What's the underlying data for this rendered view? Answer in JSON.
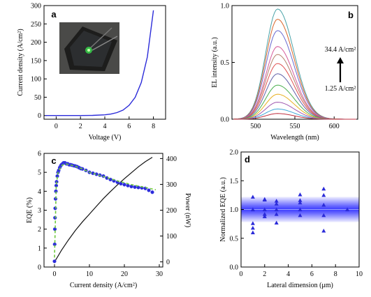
{
  "colors": {
    "axis": "#000000",
    "blue": "#2b2bd9",
    "green": "#6ec93c",
    "band": "#3a3aff",
    "black_line": "#111111"
  },
  "chart_data": [
    {
      "panel": "a",
      "type": "line",
      "xlabel": "Voltage (V)",
      "ylabel": "Current density (A/cm²)",
      "xlim": [
        -1,
        9
      ],
      "ylim": [
        -10,
        300
      ],
      "xticks": [
        0,
        2,
        4,
        6,
        8
      ],
      "yticks": [
        0,
        50,
        100,
        150,
        200,
        250,
        300
      ],
      "series": [
        {
          "x": [
            -0.9,
            0,
            1,
            2,
            3,
            4,
            4.5,
            5,
            5.5,
            6,
            6.5,
            7,
            7.5,
            8
          ],
          "y": [
            0,
            0,
            0,
            0,
            0.5,
            2,
            4,
            8,
            15,
            28,
            50,
            90,
            160,
            287
          ]
        }
      ],
      "inset": "device photo"
    },
    {
      "panel": "b",
      "type": "line",
      "xlabel": "Wavelength (nm)",
      "ylabel": "EL intensity (a.u.)",
      "xlim": [
        470,
        630
      ],
      "ylim": [
        0,
        1.0
      ],
      "xticks": [
        500,
        550,
        600
      ],
      "yticks": [
        0.0,
        0.5,
        1.0
      ],
      "peak_nm": 528,
      "annotation_top": "34.4 A/cm²",
      "annotation_bottom": "1.25 A/cm²",
      "series": [
        {
          "peak": 0.97,
          "color": "#4aa3a8"
        },
        {
          "peak": 0.88,
          "color": "#d9662a"
        },
        {
          "peak": 0.78,
          "color": "#6a6ad0"
        },
        {
          "peak": 0.64,
          "color": "#d65a9a"
        },
        {
          "peak": 0.57,
          "color": "#b57f6a"
        },
        {
          "peak": 0.49,
          "color": "#e05050"
        },
        {
          "peak": 0.4,
          "color": "#6060a8"
        },
        {
          "peak": 0.3,
          "color": "#4cb050"
        },
        {
          "peak": 0.22,
          "color": "#e8b020"
        },
        {
          "peak": 0.15,
          "color": "#a058b0"
        },
        {
          "peak": 0.09,
          "color": "#40a8d8"
        },
        {
          "peak": 0.05,
          "color": "#c03040"
        }
      ]
    },
    {
      "panel": "c",
      "type": "scatter",
      "xlabel": "Current density (A/cm²)",
      "ylabel": "EQE (%)",
      "y2label": "Power (nW)",
      "xlim": [
        -3,
        31
      ],
      "ylim": [
        0,
        6
      ],
      "y2lim": [
        -20,
        420
      ],
      "xticks": [
        0,
        10,
        20,
        30
      ],
      "yticks": [
        0,
        1,
        2,
        3,
        4,
        5,
        6
      ],
      "y2ticks": [
        0,
        100,
        200,
        300,
        400
      ],
      "eqe_x": [
        0,
        0.05,
        0.1,
        0.15,
        0.2,
        0.3,
        0.4,
        0.5,
        0.6,
        0.8,
        1.0,
        1.2,
        1.5,
        1.8,
        2.0,
        2.3,
        2.6,
        3.0,
        3.4,
        3.8,
        4.2,
        4.6,
        5,
        5.5,
        6,
        6.5,
        7,
        7.5,
        8,
        9,
        10,
        11,
        12,
        13,
        14,
        15,
        16,
        17,
        18,
        19,
        20,
        21,
        22,
        23,
        24,
        25,
        26,
        27,
        28
      ],
      "eqe_y": [
        0.3,
        1.2,
        2.0,
        2.6,
        3.1,
        3.6,
        4.0,
        4.3,
        4.5,
        4.8,
        5.0,
        5.1,
        5.25,
        5.35,
        5.4,
        5.45,
        5.5,
        5.5,
        5.45,
        5.45,
        5.4,
        5.4,
        5.38,
        5.35,
        5.33,
        5.3,
        5.25,
        5.2,
        5.18,
        5.1,
        5.0,
        4.95,
        4.9,
        4.85,
        4.8,
        4.7,
        4.62,
        4.55,
        4.48,
        4.4,
        4.35,
        4.3,
        4.25,
        4.22,
        4.2,
        4.18,
        4.15,
        4.05,
        3.95
      ],
      "fit_x": [
        0,
        0.5,
        1,
        2,
        3,
        4,
        6,
        8,
        10,
        14,
        18,
        22,
        26,
        29
      ],
      "fit_y": [
        0.5,
        4.3,
        5.0,
        5.35,
        5.45,
        5.42,
        5.32,
        5.18,
        5.0,
        4.78,
        4.55,
        4.35,
        4.2,
        4.08
      ],
      "power_x": [
        0,
        1,
        2,
        4,
        6,
        8,
        10,
        12,
        14,
        16,
        18,
        20,
        22,
        24,
        26,
        28
      ],
      "power_y": [
        0,
        22,
        45,
        85,
        122,
        155,
        185,
        215,
        245,
        272,
        298,
        322,
        345,
        368,
        388,
        405
      ]
    },
    {
      "panel": "d",
      "type": "scatter",
      "xlabel": "Lateral dimension (μm)",
      "ylabel": "Normalized EQE (a.u.)",
      "xlim": [
        0,
        10
      ],
      "ylim": [
        0,
        2.0
      ],
      "xticks": [
        0,
        2,
        4,
        6,
        8,
        10
      ],
      "yticks": [
        0.0,
        0.5,
        1.0,
        1.5,
        2.0
      ],
      "band": [
        0.78,
        1.22
      ],
      "points": [
        [
          1,
          1.22
        ],
        [
          1,
          1.0
        ],
        [
          1,
          0.76
        ],
        [
          1,
          0.68
        ],
        [
          1,
          0.6
        ],
        [
          2,
          1.18
        ],
        [
          2,
          1.17
        ],
        [
          2,
          1.0
        ],
        [
          2,
          0.92
        ],
        [
          2,
          0.88
        ],
        [
          3,
          1.15
        ],
        [
          3,
          1.1
        ],
        [
          3,
          1.0
        ],
        [
          3,
          0.92
        ],
        [
          3,
          0.77
        ],
        [
          5,
          1.26
        ],
        [
          5,
          1.16
        ],
        [
          5,
          1.12
        ],
        [
          5,
          1.0
        ],
        [
          5,
          0.9
        ],
        [
          7,
          1.36
        ],
        [
          7,
          1.25
        ],
        [
          7,
          1.08
        ],
        [
          7,
          0.9
        ],
        [
          7,
          0.63
        ],
        [
          9,
          1.0
        ]
      ]
    }
  ],
  "labels": {
    "a": "a",
    "b": "b",
    "c": "c",
    "d": "d"
  }
}
